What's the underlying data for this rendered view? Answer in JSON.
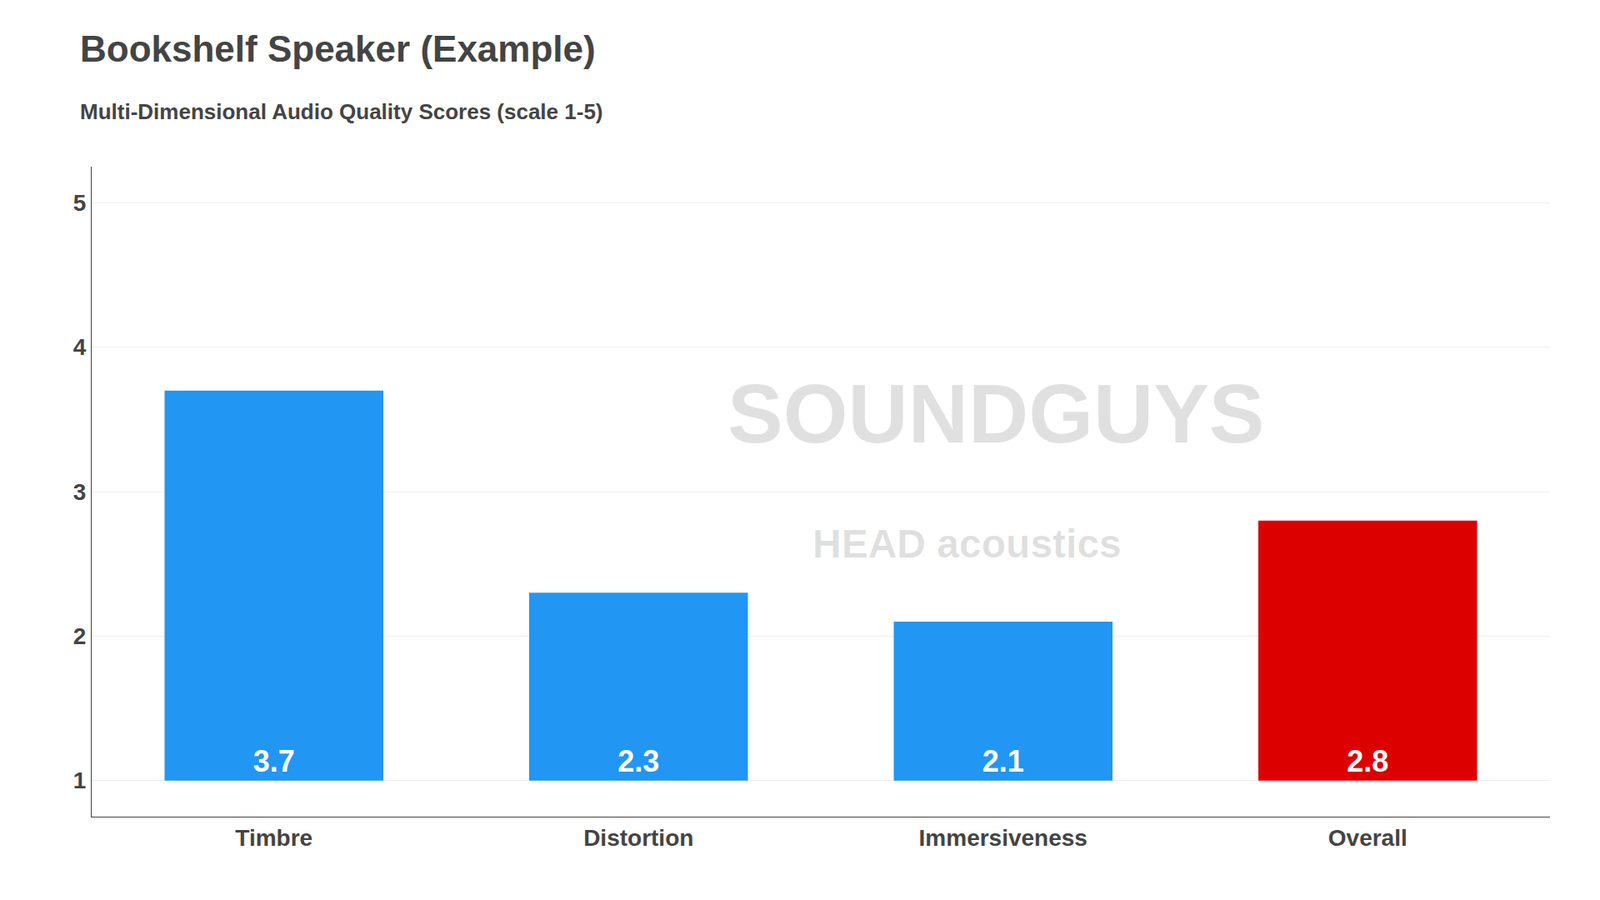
{
  "chart_data": {
    "type": "bar",
    "title": "Bookshelf Speaker (Example)",
    "subtitle": "Multi-Dimensional Audio Quality Scores (scale 1-5)",
    "categories": [
      "Timbre",
      "Distortion",
      "Immersiveness",
      "Overall"
    ],
    "values": [
      3.7,
      2.3,
      2.1,
      2.8
    ],
    "colors": [
      "#2196F3",
      "#2196F3",
      "#2196F3",
      "#DD0000"
    ],
    "base": 1,
    "ylim": [
      0.75,
      5.25
    ],
    "yticks": [
      1,
      2,
      3,
      4,
      5
    ],
    "grid": true,
    "data_labels": true,
    "annotations": [
      "SOUNDGUYS",
      "HEAD acoustics"
    ]
  }
}
